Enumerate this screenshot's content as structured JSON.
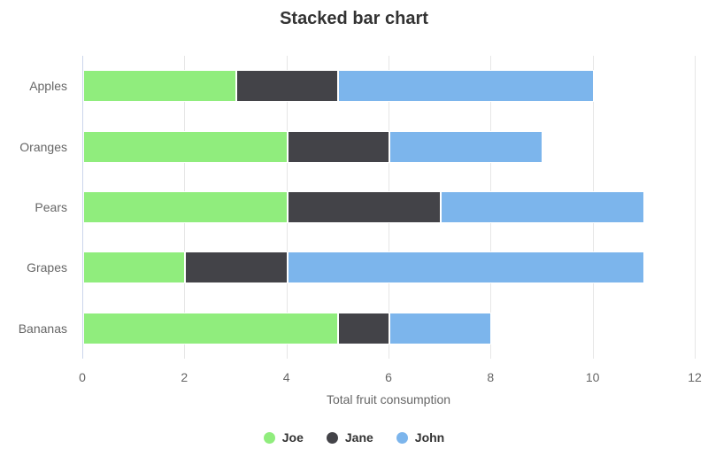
{
  "title": "Stacked bar chart",
  "chart_data": {
    "type": "bar",
    "orientation": "horizontal",
    "stacked": true,
    "title": "Stacked bar chart",
    "categories": [
      "Apples",
      "Oranges",
      "Pears",
      "Grapes",
      "Bananas"
    ],
    "series": [
      {
        "name": "Joe",
        "color": "#90ed7d",
        "values": [
          3,
          4,
          4,
          2,
          5
        ]
      },
      {
        "name": "Jane",
        "color": "#434348",
        "values": [
          2,
          2,
          3,
          2,
          1
        ]
      },
      {
        "name": "John",
        "color": "#7cb5ec",
        "values": [
          5,
          3,
          4,
          7,
          2
        ]
      }
    ],
    "stack_totals": [
      10,
      9,
      11,
      11,
      8
    ],
    "xlabel": "Total fruit consumption",
    "ylabel": "",
    "xticks": [
      0,
      2,
      4,
      6,
      8,
      10,
      12
    ],
    "xlim": [
      0,
      12
    ],
    "grid": true,
    "legend_position": "bottom",
    "legend": [
      "Joe",
      "Jane",
      "John"
    ]
  },
  "colors": {
    "grid": "#e6e6e6",
    "axis_line": "#ccd6eb",
    "title_text": "#333333",
    "axis_text": "#666666",
    "legend_text": "#333333",
    "background": "#ffffff"
  }
}
